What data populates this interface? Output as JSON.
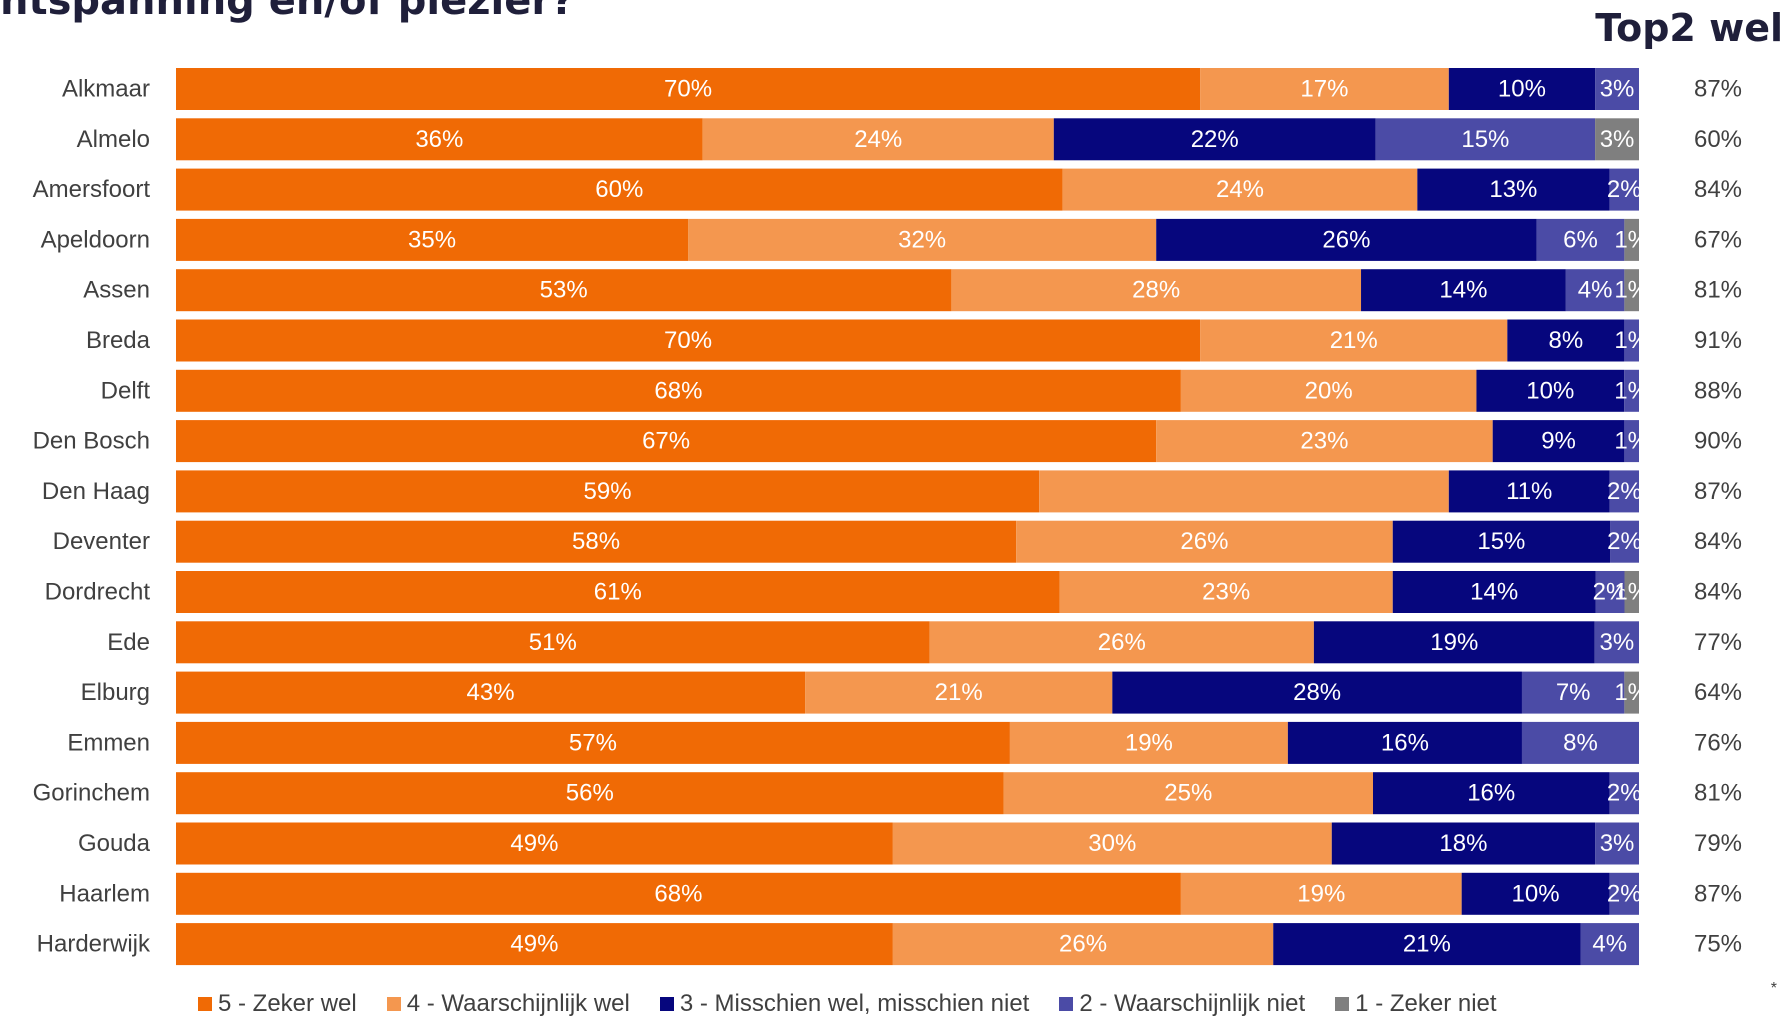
{
  "title": "ntspanning en/of plezier?",
  "top2_header": "Top2 wel",
  "footnote": "*",
  "colors": {
    "zeker_wel": "#f06a05",
    "waarschijnlijk_wel": "#f4974f",
    "misschien": "#06067d",
    "waarschijnlijk_niet": "#4b4ba6",
    "zeker_niet": "#7f7f7f"
  },
  "chart_data": {
    "type": "bar",
    "orientation": "horizontal",
    "stacked": true,
    "percent_stacked": true,
    "categories": [
      "Alkmaar",
      "Almelo",
      "Amersfoort",
      "Apeldoorn",
      "Assen",
      "Breda",
      "Delft",
      "Den Bosch",
      "Den Haag",
      "Deventer",
      "Dordrecht",
      "Ede",
      "Elburg",
      "Emmen",
      "Gorinchem",
      "Gouda",
      "Haarlem",
      "Harderwijk"
    ],
    "series": [
      {
        "name": "5 - Zeker wel",
        "color_key": "zeker_wel",
        "values": [
          70,
          36,
          60,
          35,
          53,
          70,
          68,
          67,
          59,
          58,
          61,
          51,
          43,
          57,
          56,
          49,
          68,
          49
        ],
        "labels": [
          "70%",
          "36%",
          "60%",
          "35%",
          "53%",
          "70%",
          "68%",
          "67%",
          "59%",
          "58%",
          "61%",
          "51%",
          "43%",
          "57%",
          "56%",
          "49%",
          "68%",
          "49%"
        ]
      },
      {
        "name": "4 - Waarschijnlijk wel",
        "color_key": "waarschijnlijk_wel",
        "values": [
          17,
          24,
          24,
          32,
          28,
          21,
          20,
          23,
          28,
          26,
          23,
          26,
          21,
          19,
          25,
          30,
          19,
          26
        ],
        "labels": [
          "17%",
          "24%",
          "24%",
          "32%",
          "28%",
          "21%",
          "20%",
          "23%",
          "",
          "26%",
          "23%",
          "26%",
          "21%",
          "19%",
          "25%",
          "30%",
          "19%",
          "26%"
        ]
      },
      {
        "name": "3 - Misschien wel, misschien niet",
        "color_key": "misschien",
        "values": [
          10,
          22,
          13,
          26,
          14,
          8,
          10,
          9,
          11,
          15,
          14,
          19,
          28,
          16,
          16,
          18,
          10,
          21
        ],
        "labels": [
          "10%",
          "22%",
          "13%",
          "26%",
          "14%",
          "8%",
          "10%",
          "9%",
          "11%",
          "15%",
          "14%",
          "19%",
          "28%",
          "16%",
          "16%",
          "18%",
          "10%",
          "21%"
        ]
      },
      {
        "name": "2 - Waarschijnlijk niet",
        "color_key": "waarschijnlijk_niet",
        "values": [
          3,
          15,
          2,
          6,
          4,
          1,
          1,
          1,
          2,
          2,
          2,
          3,
          7,
          8,
          2,
          3,
          2,
          4
        ],
        "labels": [
          "3%",
          "15%",
          "2%",
          "6%",
          "4%",
          "1%",
          "1%",
          "1%",
          "2%",
          "2%",
          "2%",
          "3%",
          "7%",
          "8%",
          "2%",
          "3%",
          "2%",
          "4%"
        ]
      },
      {
        "name": "1 - Zeker niet",
        "color_key": "zeker_niet",
        "values": [
          0,
          3,
          0,
          1,
          1,
          0,
          0,
          0,
          0,
          0,
          1,
          0,
          1,
          0,
          0,
          0,
          0,
          0
        ],
        "labels": [
          "",
          "3%",
          "",
          "1%",
          "1%",
          "",
          "",
          "",
          "",
          "",
          "1%",
          "",
          "1%",
          "",
          "",
          "",
          "",
          ""
        ]
      }
    ],
    "top2": [
      "87%",
      "60%",
      "84%",
      "67%",
      "81%",
      "91%",
      "88%",
      "90%",
      "87%",
      "84%",
      "84%",
      "77%",
      "64%",
      "76%",
      "81%",
      "79%",
      "87%",
      "75%"
    ],
    "xlim": [
      0,
      100
    ],
    "legend_position": "bottom",
    "grid": false
  }
}
